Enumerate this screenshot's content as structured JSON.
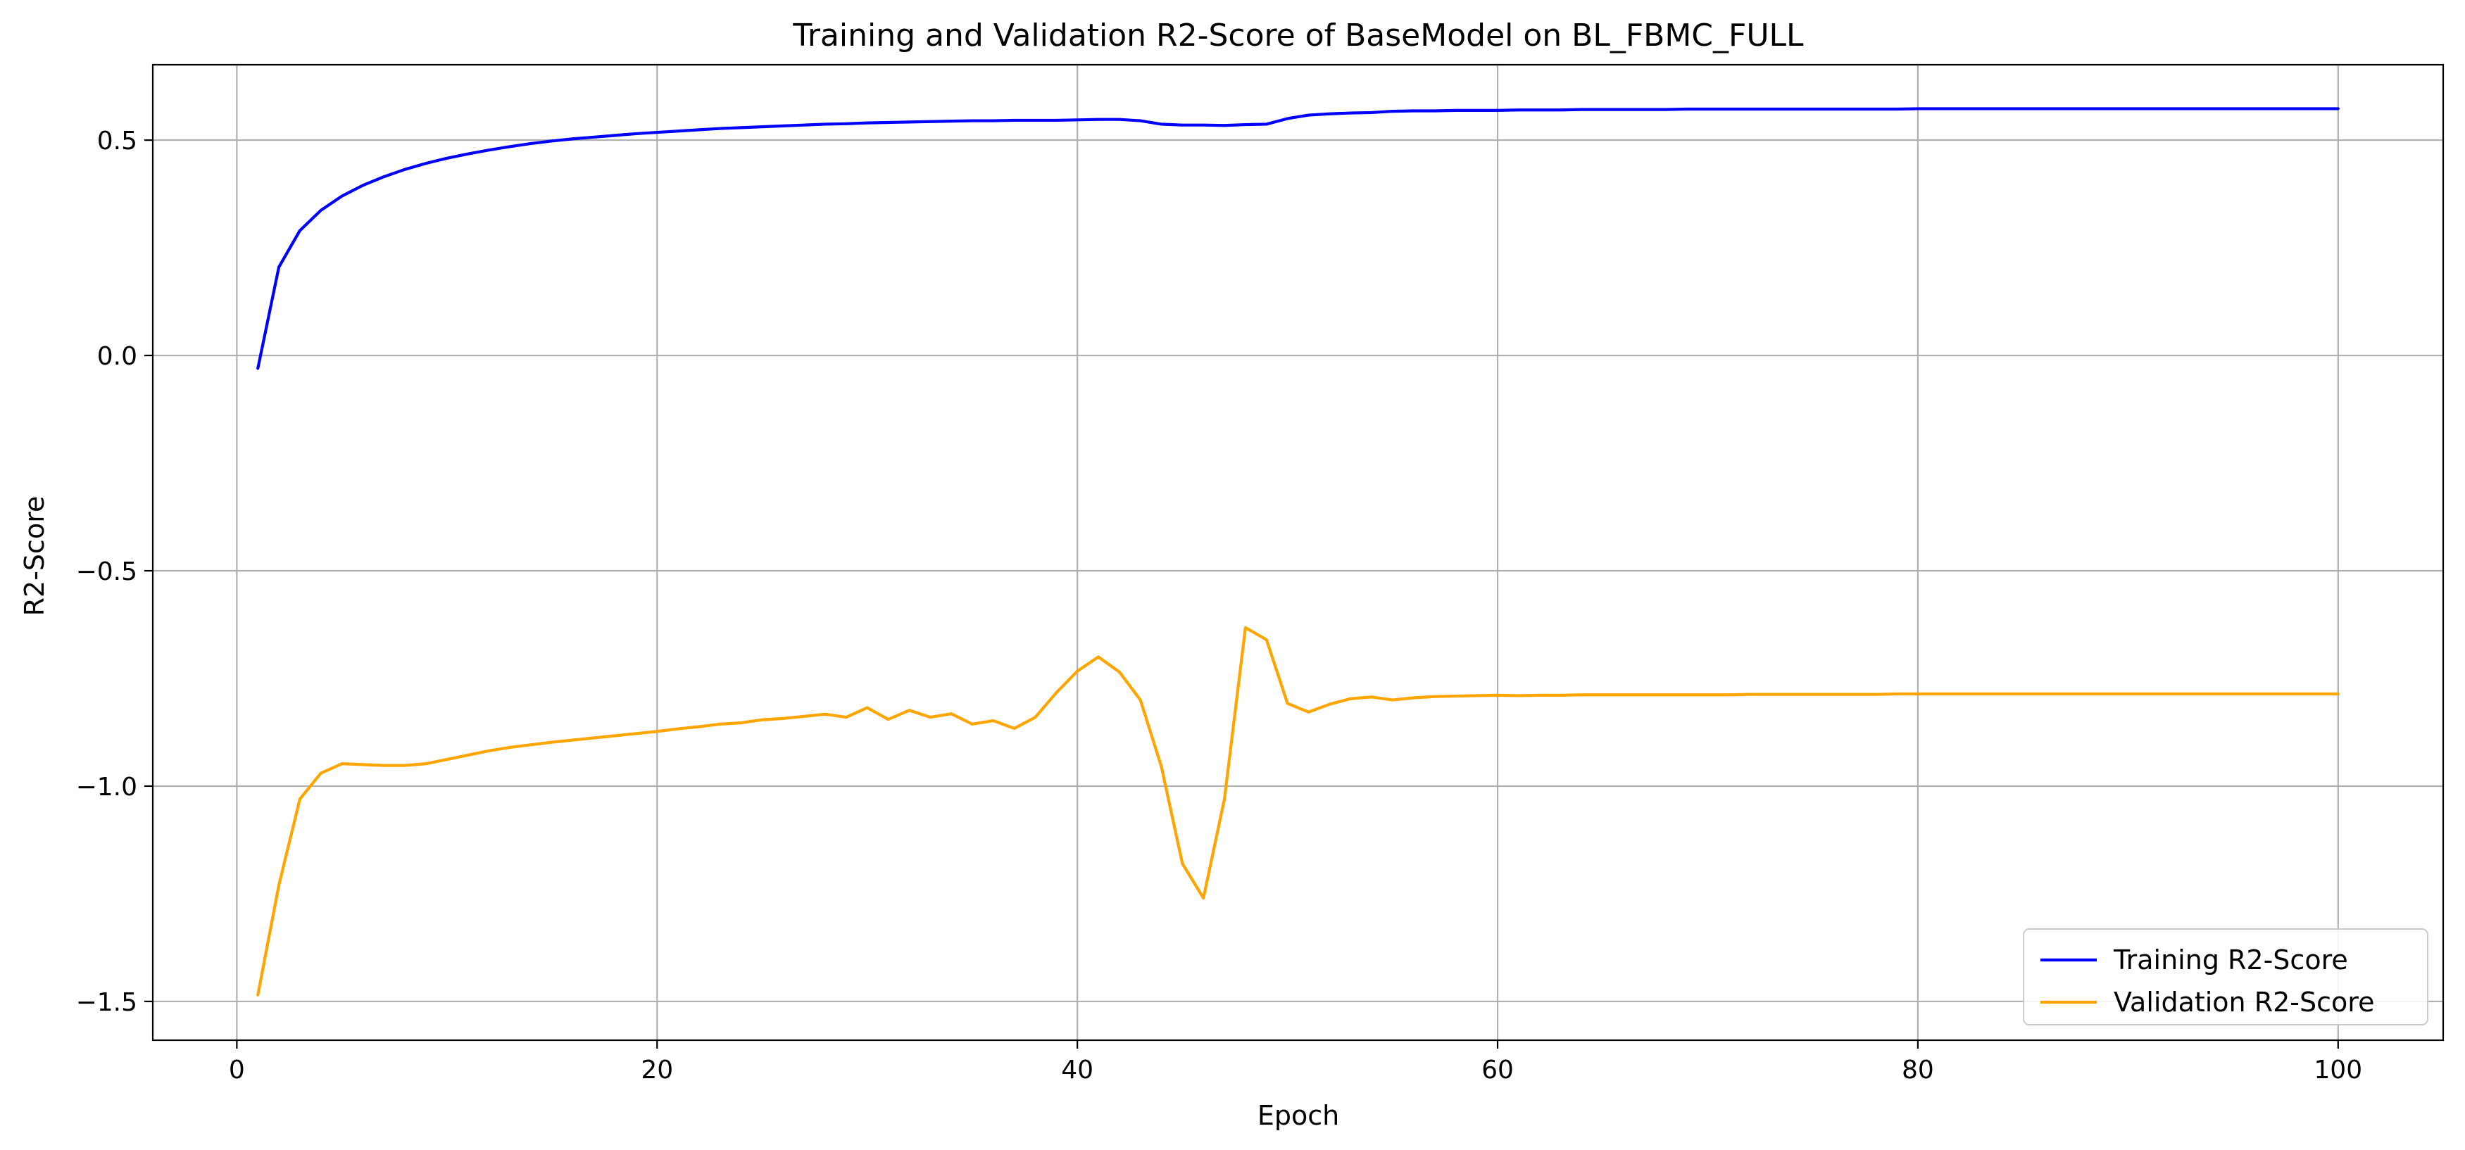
{
  "chart_data": {
    "type": "line",
    "title": "Training and Validation R2-Score of BaseModel on BL_FBMC_FULL",
    "xlabel": "Epoch",
    "ylabel": "R2-Score",
    "xlim": [
      -4,
      105
    ],
    "ylim": [
      -1.59,
      0.675
    ],
    "xticks": [
      0,
      20,
      40,
      60,
      80,
      100
    ],
    "xtick_labels": [
      "0",
      "20",
      "40",
      "60",
      "80",
      "100"
    ],
    "yticks": [
      -1.5,
      -1.0,
      -0.5,
      0.0,
      0.5
    ],
    "ytick_labels": [
      "−1.5",
      "−1.0",
      "−0.5",
      "0.0",
      "0.5"
    ],
    "grid": true,
    "legend_position": "bottom-right",
    "x": [
      1,
      2,
      3,
      4,
      5,
      6,
      7,
      8,
      9,
      10,
      11,
      12,
      13,
      14,
      15,
      16,
      17,
      18,
      19,
      20,
      21,
      22,
      23,
      24,
      25,
      26,
      27,
      28,
      29,
      30,
      31,
      32,
      33,
      34,
      35,
      36,
      37,
      38,
      39,
      40,
      41,
      42,
      43,
      44,
      45,
      46,
      47,
      48,
      49,
      50,
      51,
      52,
      53,
      54,
      55,
      56,
      57,
      58,
      59,
      60,
      61,
      62,
      63,
      64,
      65,
      66,
      67,
      68,
      69,
      70,
      71,
      72,
      73,
      74,
      75,
      76,
      77,
      78,
      79,
      80,
      81,
      82,
      83,
      84,
      85,
      86,
      87,
      88,
      89,
      90,
      91,
      92,
      93,
      94,
      95,
      96,
      97,
      98,
      99,
      100
    ],
    "series": [
      {
        "name": "Training R2-Score",
        "color": "#0000ff",
        "values": [
          -0.03,
          0.205,
          0.29,
          0.337,
          0.37,
          0.395,
          0.415,
          0.432,
          0.446,
          0.458,
          0.468,
          0.477,
          0.485,
          0.492,
          0.498,
          0.503,
          0.507,
          0.511,
          0.515,
          0.518,
          0.521,
          0.524,
          0.527,
          0.529,
          0.531,
          0.533,
          0.535,
          0.537,
          0.538,
          0.54,
          0.541,
          0.542,
          0.543,
          0.544,
          0.545,
          0.545,
          0.546,
          0.546,
          0.546,
          0.547,
          0.548,
          0.548,
          0.545,
          0.537,
          0.535,
          0.535,
          0.534,
          0.536,
          0.537,
          0.55,
          0.558,
          0.561,
          0.563,
          0.564,
          0.567,
          0.568,
          0.568,
          0.569,
          0.569,
          0.569,
          0.57,
          0.57,
          0.57,
          0.571,
          0.571,
          0.571,
          0.571,
          0.571,
          0.572,
          0.572,
          0.572,
          0.572,
          0.572,
          0.572,
          0.572,
          0.572,
          0.572,
          0.572,
          0.572,
          0.573,
          0.573,
          0.573,
          0.573,
          0.573,
          0.573,
          0.573,
          0.573,
          0.573,
          0.573,
          0.573,
          0.573,
          0.573,
          0.573,
          0.573,
          0.573,
          0.573,
          0.573,
          0.573,
          0.573,
          0.573
        ]
      },
      {
        "name": "Validation R2-Score",
        "color": "#ffa500",
        "values": [
          -1.485,
          -1.23,
          -1.03,
          -0.97,
          -0.948,
          -0.95,
          -0.952,
          -0.952,
          -0.948,
          -0.938,
          -0.928,
          -0.918,
          -0.91,
          -0.904,
          -0.898,
          -0.893,
          -0.888,
          -0.883,
          -0.878,
          -0.873,
          -0.867,
          -0.862,
          -0.856,
          -0.853,
          -0.846,
          -0.843,
          -0.838,
          -0.833,
          -0.84,
          -0.818,
          -0.845,
          -0.824,
          -0.84,
          -0.832,
          -0.856,
          -0.848,
          -0.866,
          -0.84,
          -0.783,
          -0.733,
          -0.7,
          -0.735,
          -0.8,
          -0.955,
          -1.18,
          -1.26,
          -1.03,
          -0.632,
          -0.66,
          -0.808,
          -0.828,
          -0.81,
          -0.797,
          -0.793,
          -0.8,
          -0.795,
          -0.792,
          -0.791,
          -0.79,
          -0.789,
          -0.79,
          -0.789,
          -0.789,
          -0.788,
          -0.788,
          -0.788,
          -0.788,
          -0.788,
          -0.788,
          -0.788,
          -0.788,
          -0.787,
          -0.787,
          -0.787,
          -0.787,
          -0.787,
          -0.787,
          -0.787,
          -0.786,
          -0.786,
          -0.786,
          -0.786,
          -0.786,
          -0.786,
          -0.786,
          -0.786,
          -0.786,
          -0.786,
          -0.786,
          -0.786,
          -0.786,
          -0.786,
          -0.786,
          -0.786,
          -0.786,
          -0.786,
          -0.786,
          -0.786,
          -0.786,
          -0.786
        ]
      }
    ]
  }
}
